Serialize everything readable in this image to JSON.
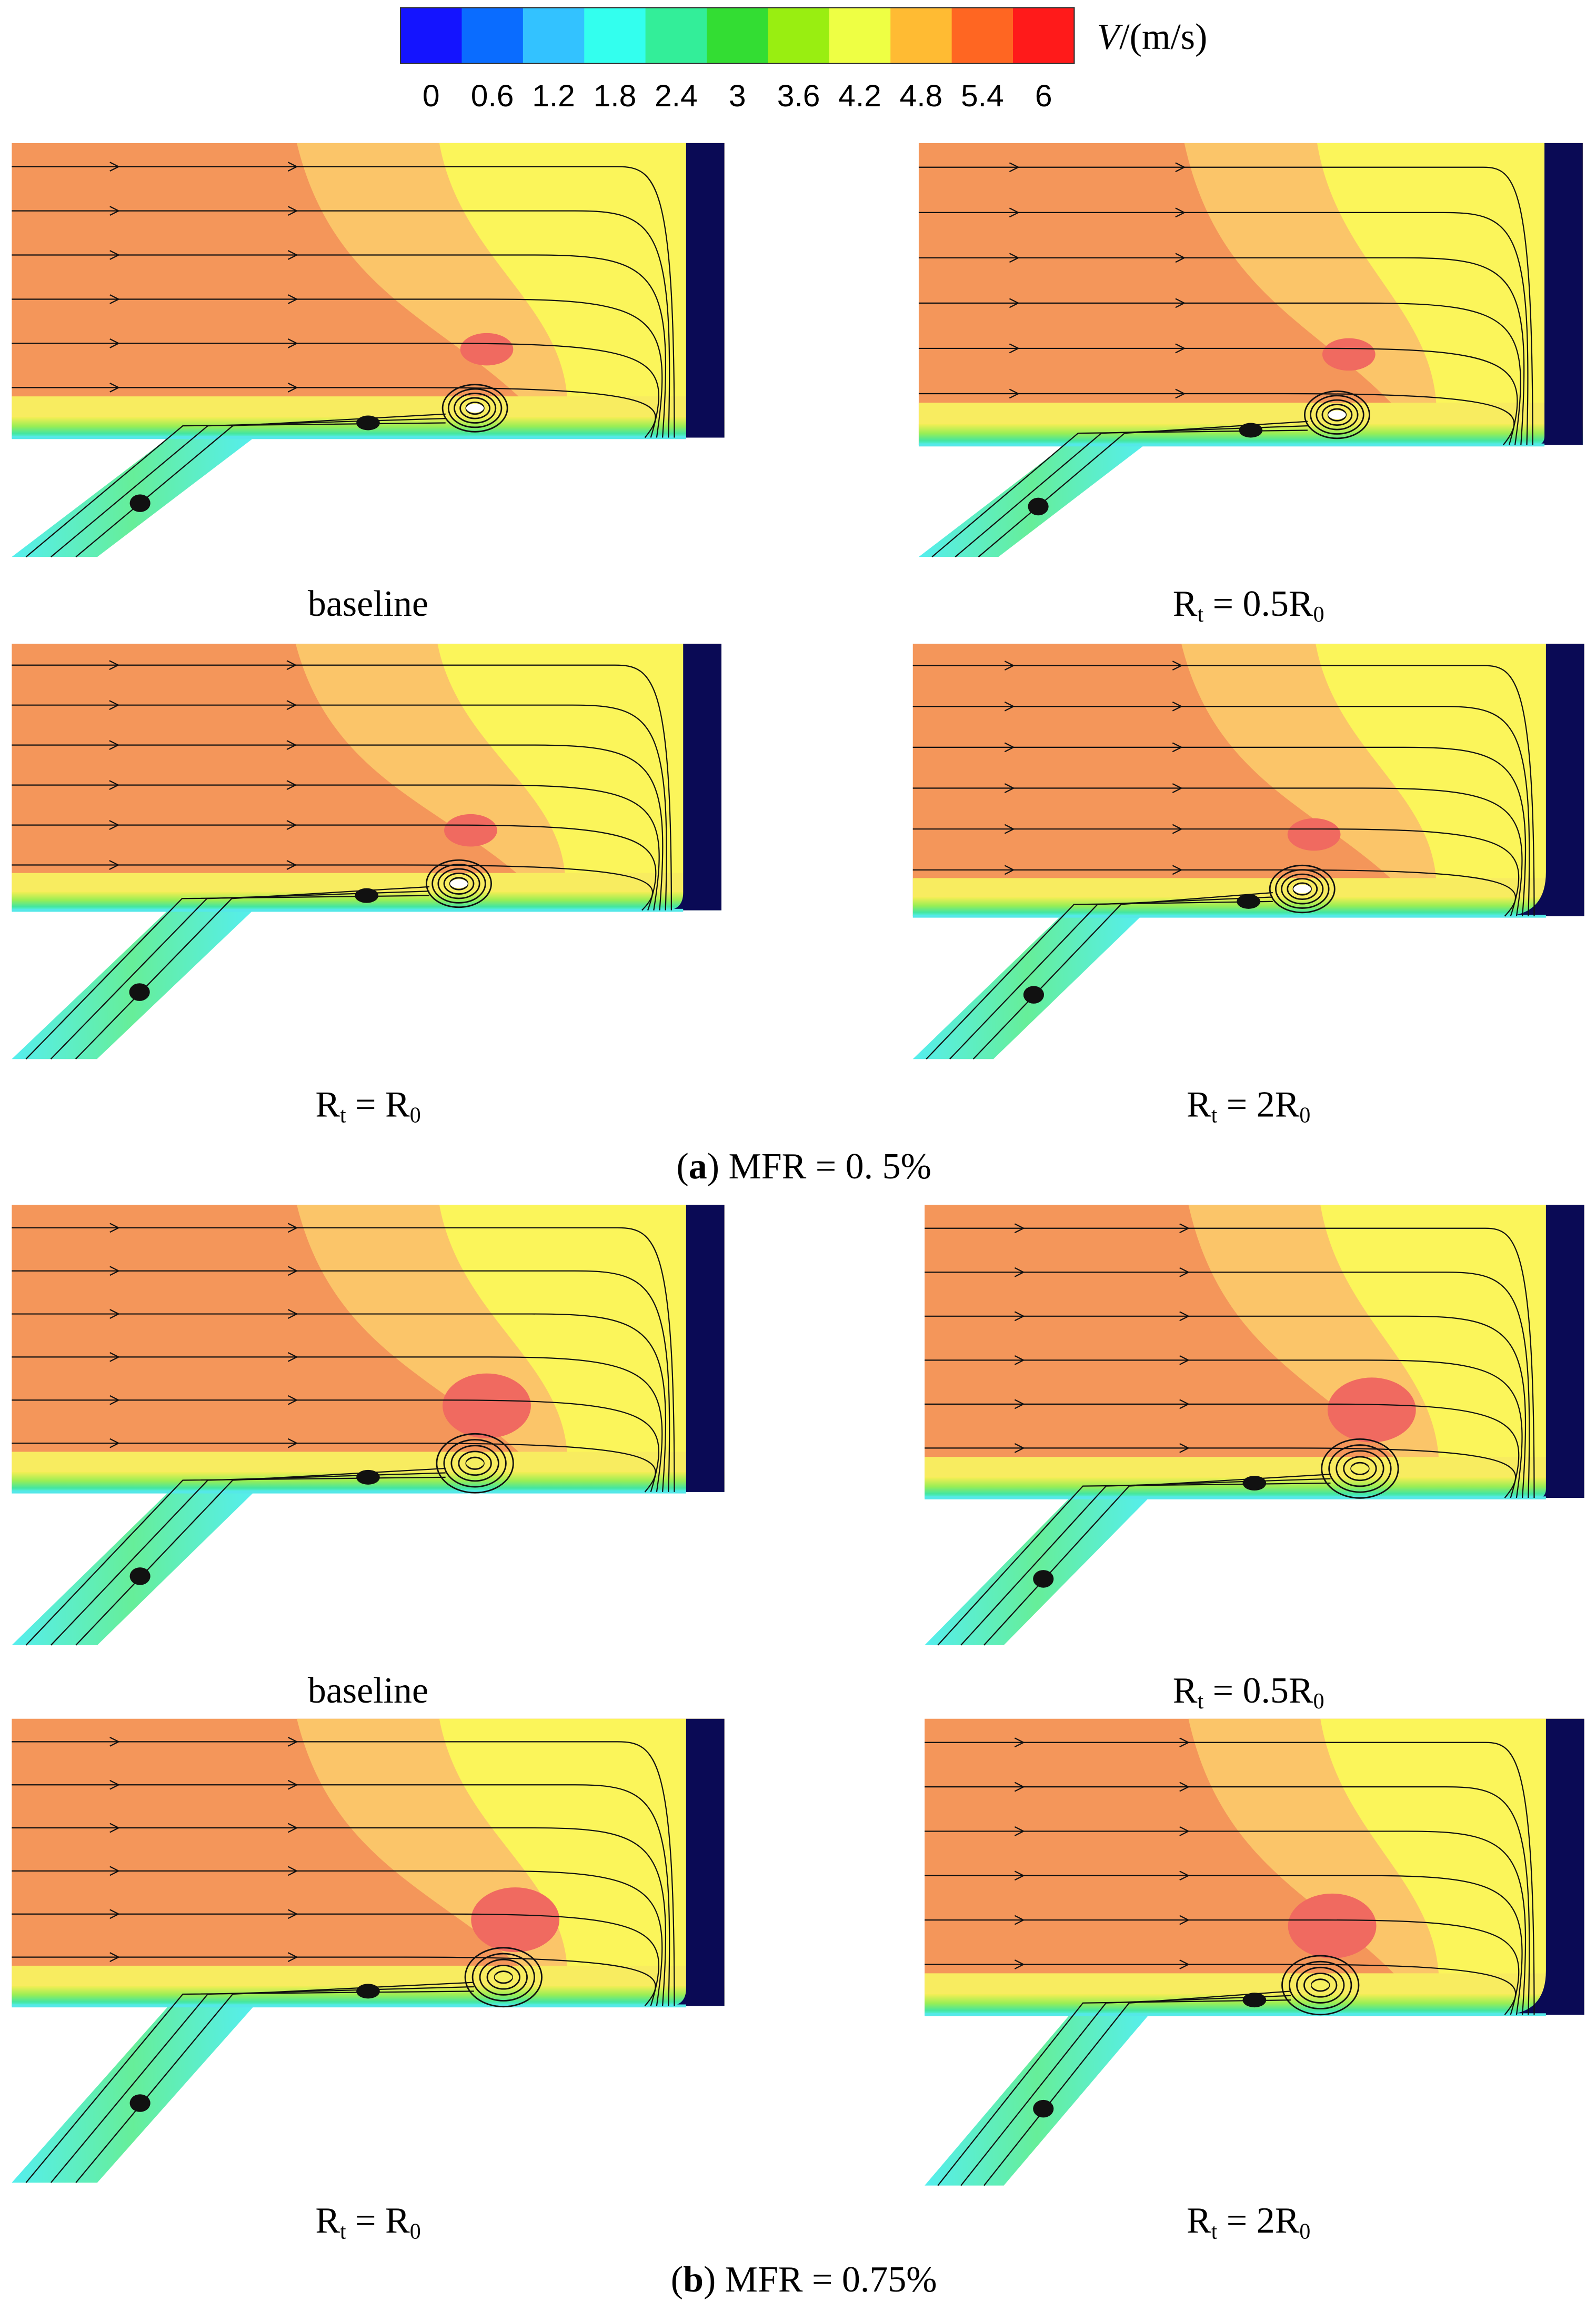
{
  "colorbar": {
    "colors": [
      "#1414ff",
      "#0a6cff",
      "#33c2ff",
      "#33ffee",
      "#33ee99",
      "#33dd33",
      "#99ee11",
      "#eeff44",
      "#ffbb33",
      "#ff6622",
      "#ff1a1a"
    ],
    "ticks": [
      0,
      0.6,
      1.2,
      1.8,
      2.4,
      3,
      3.6,
      4.2,
      4.8,
      5.4,
      6
    ],
    "unit": {
      "symbol": "V",
      "rest": "/(m/s)"
    }
  },
  "groups": [
    {
      "label": {
        "open": "(",
        "letter": "a",
        "rest": ") MFR = 0. 5%"
      },
      "panels": [
        {
          "caption": {
            "text": "baseline"
          }
        },
        {
          "caption": {
            "base": "R",
            "sub": "t",
            "mid": " = 0.5R",
            "sub2": "0"
          }
        },
        {
          "caption": {
            "base": "R",
            "sub": "t",
            "mid": " = R",
            "sub2": "0"
          }
        },
        {
          "caption": {
            "base": "R",
            "sub": "t",
            "mid": " = 2R",
            "sub2": "0"
          }
        }
      ]
    },
    {
      "label": {
        "open": "(",
        "letter": "b",
        "rest": ") MFR = 0.75%"
      },
      "panels": [
        {
          "caption": {
            "text": "baseline"
          }
        },
        {
          "caption": {
            "base": "R",
            "sub": "t",
            "mid": " = 0.5R",
            "sub2": "0"
          }
        },
        {
          "caption": {
            "base": "R",
            "sub": "t",
            "mid": " = R",
            "sub2": "0"
          }
        },
        {
          "caption": {
            "base": "R",
            "sub": "t",
            "mid": " = 2R",
            "sub2": "0"
          }
        }
      ]
    }
  ]
}
